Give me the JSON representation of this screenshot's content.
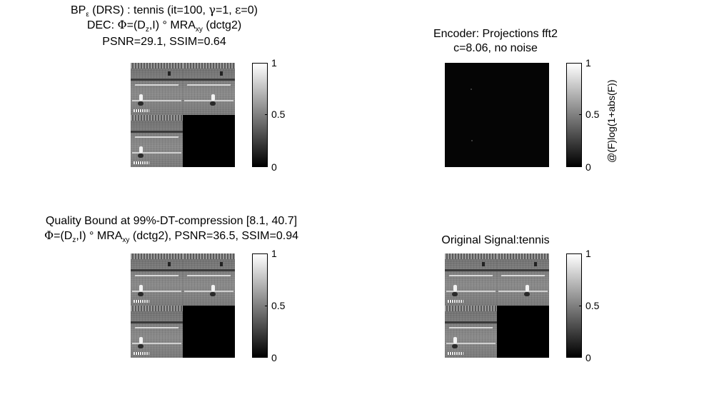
{
  "panels": {
    "top_left": {
      "line1": "BP",
      "line1_sub": "ε",
      "line1_rest": " (DRS) : tennis (it=100, ",
      "gamma": "γ",
      "line1_end": "=1, ",
      "eps": "ε",
      "line1_close": "=0)",
      "line2_pre": "DEC: ",
      "phi": "Φ",
      "line2_mid": "=(D",
      "line2_sub_z": "z",
      "line2_mid2": ",I) ° MRA",
      "line2_sub_xy": "xy",
      "line2_end": " (dctg2)",
      "line3": "PSNR=29.1, SSIM=0.64"
    },
    "top_right": {
      "line1": "Encoder: Projections fft2",
      "line2": "c=8.06, no noise",
      "ylabel": "@(F)log(1+abs(F))"
    },
    "bottom_left": {
      "line1": "Quality Bound at 99%-DT-compression [8.1, 40.7]",
      "phi": "Φ",
      "line2_mid": "=(D",
      "line2_sub_z": "z",
      "line2_mid2": ",I) ° MRA",
      "line2_sub_xy": "xy",
      "line2_end": " (dctg2), PSNR=36.5, SSIM=0.94"
    },
    "bottom_right": {
      "line1": "Original Signal:tennis"
    }
  },
  "colorbar": {
    "ticks": [
      "1",
      "0.5",
      "0"
    ]
  }
}
